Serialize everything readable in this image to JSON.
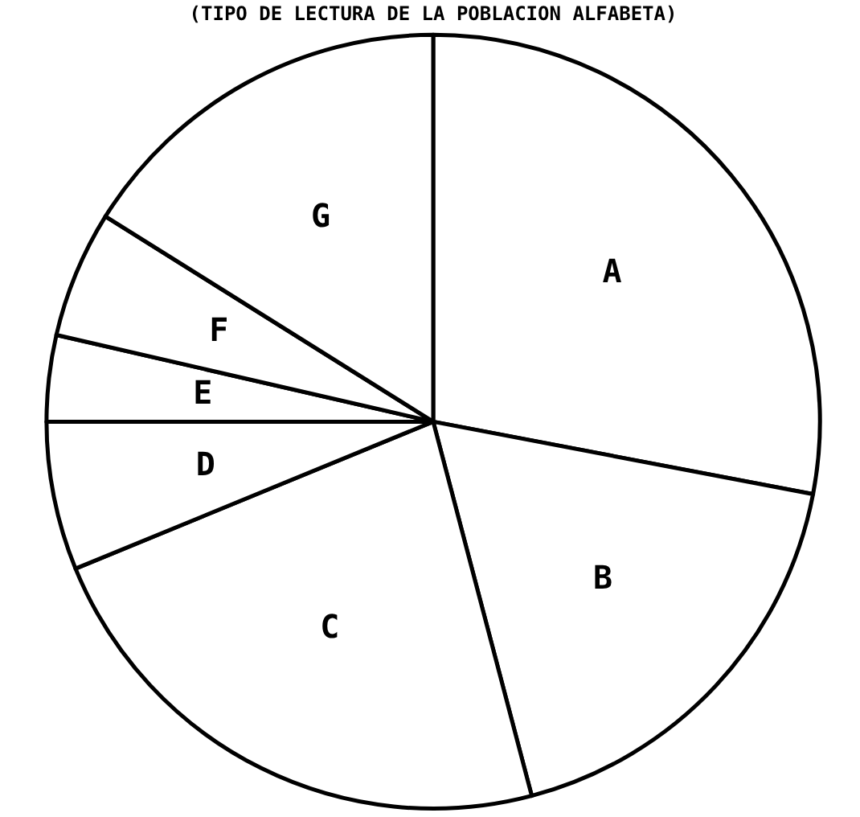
{
  "chart_data": {
    "type": "pie",
    "title": "(TIPO DE LECTURA DE LA POBLACION ALFABETA)",
    "categories": [
      "A",
      "B",
      "C",
      "D",
      "E",
      "F",
      "G"
    ],
    "values": [
      28.0,
      17.9,
      22.9,
      6.2,
      3.6,
      5.3,
      16.1
    ],
    "colors": [
      "#ffffff",
      "#ffffff",
      "#ffffff",
      "#ffffff",
      "#ffffff",
      "#ffffff",
      "#ffffff"
    ],
    "legend": false
  }
}
